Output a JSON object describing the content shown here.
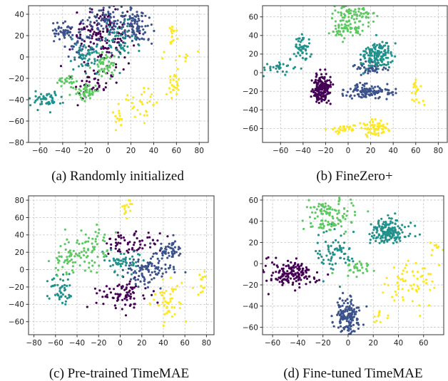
{
  "figure": {
    "palette": [
      "#440154",
      "#3b528b",
      "#21918c",
      "#5ec962",
      "#fde725"
    ]
  },
  "chart_data": [
    {
      "type": "scatter",
      "caption": "(a) Randomly initialized",
      "xlim": [
        -70,
        88
      ],
      "ylim": [
        -80,
        48
      ],
      "xticks": [
        -60,
        -40,
        -20,
        0,
        20,
        40,
        60,
        80
      ],
      "yticks": [
        -80,
        -60,
        -40,
        -20,
        0,
        20,
        40
      ],
      "grid": true,
      "clusters": [
        {
          "class": 0,
          "cx": -5,
          "cy": 20,
          "sx": 14,
          "sy": 14,
          "n": 170
        },
        {
          "class": 0,
          "cx": -15,
          "cy": -28,
          "sx": 6,
          "sy": 6,
          "n": 40
        },
        {
          "class": 1,
          "cx": -40,
          "cy": 23,
          "sx": 6,
          "sy": 4,
          "n": 45
        },
        {
          "class": 1,
          "cx": 25,
          "cy": 28,
          "sx": 7,
          "sy": 8,
          "n": 90
        },
        {
          "class": 1,
          "cx": 0,
          "cy": 35,
          "sx": 10,
          "sy": 7,
          "n": 80
        },
        {
          "class": 1,
          "cx": -25,
          "cy": 10,
          "sx": 6,
          "sy": 6,
          "n": 35
        },
        {
          "class": 2,
          "cx": -20,
          "cy": 2,
          "sx": 6,
          "sy": 8,
          "n": 50
        },
        {
          "class": 2,
          "cx": -55,
          "cy": -40,
          "sx": 8,
          "sy": 4,
          "n": 50
        },
        {
          "class": 2,
          "cx": 10,
          "cy": 15,
          "sx": 8,
          "sy": 10,
          "n": 50
        },
        {
          "class": 3,
          "cx": -3,
          "cy": -8,
          "sx": 5,
          "sy": 6,
          "n": 50
        },
        {
          "class": 3,
          "cx": -18,
          "cy": -32,
          "sx": 5,
          "sy": 4,
          "n": 45
        },
        {
          "class": 3,
          "cx": -35,
          "cy": -22,
          "sx": 5,
          "sy": 4,
          "n": 25
        },
        {
          "class": 4,
          "cx": 57,
          "cy": 22,
          "sx": 2,
          "sy": 5,
          "n": 15
        },
        {
          "class": 4,
          "cx": 58,
          "cy": -25,
          "sx": 3,
          "sy": 7,
          "n": 25
        },
        {
          "class": 4,
          "cx": 70,
          "cy": 0,
          "sx": 7,
          "sy": 3,
          "n": 10
        },
        {
          "class": 4,
          "cx": 30,
          "cy": -42,
          "sx": 6,
          "sy": 8,
          "n": 30
        },
        {
          "class": 4,
          "cx": 8,
          "cy": -60,
          "sx": 2,
          "sy": 6,
          "n": 14
        }
      ]
    },
    {
      "type": "scatter",
      "caption": "(b) FineZero+",
      "xlim": [
        -76,
        88
      ],
      "ylim": [
        -75,
        72
      ],
      "xticks": [
        -60,
        -40,
        -20,
        0,
        20,
        40,
        60,
        80
      ],
      "yticks": [
        -60,
        -40,
        -20,
        0,
        20,
        40,
        60
      ],
      "grid": true,
      "clusters": [
        {
          "class": 0,
          "cx": -23,
          "cy": -18,
          "sx": 4,
          "sy": 8,
          "n": 170
        },
        {
          "class": 1,
          "cx": 18,
          "cy": -20,
          "sx": 10,
          "sy": 4,
          "n": 120
        },
        {
          "class": 1,
          "cx": 20,
          "cy": 5,
          "sx": 7,
          "sy": 4,
          "n": 50
        },
        {
          "class": 2,
          "cx": 25,
          "cy": 18,
          "sx": 7,
          "sy": 7,
          "n": 150
        },
        {
          "class": 2,
          "cx": -40,
          "cy": 28,
          "sx": 4,
          "sy": 7,
          "n": 50
        },
        {
          "class": 2,
          "cx": -62,
          "cy": 5,
          "sx": 8,
          "sy": 3,
          "n": 30
        },
        {
          "class": 3,
          "cx": 5,
          "cy": 62,
          "sx": 9,
          "sy": 5,
          "n": 80
        },
        {
          "class": 3,
          "cx": -8,
          "cy": 45,
          "sx": 4,
          "sy": 5,
          "n": 30
        },
        {
          "class": 3,
          "cx": 5,
          "cy": 45,
          "sx": 5,
          "sy": 3,
          "n": 25
        },
        {
          "class": 4,
          "cx": 25,
          "cy": -60,
          "sx": 7,
          "sy": 4,
          "n": 60
        },
        {
          "class": 4,
          "cx": -5,
          "cy": -60,
          "sx": 8,
          "sy": 2,
          "n": 30
        },
        {
          "class": 4,
          "cx": 60,
          "cy": -20,
          "sx": 3,
          "sy": 9,
          "n": 20
        }
      ]
    },
    {
      "type": "scatter",
      "caption": "(c) Pre-trained TimeMAE",
      "xlim": [
        -85,
        87
      ],
      "ylim": [
        -75,
        85
      ],
      "xticks": [
        -80,
        -60,
        -40,
        -20,
        0,
        20,
        40,
        60,
        80
      ],
      "yticks": [
        -60,
        -40,
        -20,
        0,
        20,
        40,
        60,
        80
      ],
      "grid": true,
      "clusters": [
        {
          "class": 0,
          "cx": 0,
          "cy": -30,
          "sx": 12,
          "sy": 8,
          "n": 80
        },
        {
          "class": 0,
          "cx": 10,
          "cy": 30,
          "sx": 12,
          "sy": 7,
          "n": 60
        },
        {
          "class": 1,
          "cx": 25,
          "cy": 0,
          "sx": 12,
          "sy": 10,
          "n": 100
        },
        {
          "class": 1,
          "cx": 45,
          "cy": 20,
          "sx": 6,
          "sy": 8,
          "n": 50
        },
        {
          "class": 2,
          "cx": -55,
          "cy": -25,
          "sx": 6,
          "sy": 10,
          "n": 50
        },
        {
          "class": 2,
          "cx": 0,
          "cy": 10,
          "sx": 10,
          "sy": 8,
          "n": 50
        },
        {
          "class": 3,
          "cx": -25,
          "cy": 25,
          "sx": 8,
          "sy": 12,
          "n": 60
        },
        {
          "class": 3,
          "cx": -50,
          "cy": 15,
          "sx": 8,
          "sy": 10,
          "n": 50
        },
        {
          "class": 4,
          "cx": 45,
          "cy": -35,
          "sx": 8,
          "sy": 12,
          "n": 50
        },
        {
          "class": 4,
          "cx": 75,
          "cy": -10,
          "sx": 3,
          "sy": 8,
          "n": 15
        },
        {
          "class": 4,
          "cx": 5,
          "cy": 70,
          "sx": 3,
          "sy": 6,
          "n": 15
        }
      ]
    },
    {
      "type": "scatter",
      "caption": "(d) Fine-tuned TimeMAE",
      "xlim": [
        -68,
        76
      ],
      "ylim": [
        -67,
        64
      ],
      "xticks": [
        -60,
        -40,
        -20,
        0,
        20,
        40,
        60
      ],
      "yticks": [
        -60,
        -40,
        -20,
        0,
        20,
        40,
        60
      ],
      "grid": true,
      "clusters": [
        {
          "class": 0,
          "cx": -45,
          "cy": -10,
          "sx": 10,
          "sy": 6,
          "n": 160
        },
        {
          "class": 1,
          "cx": 0,
          "cy": -48,
          "sx": 5,
          "sy": 9,
          "n": 150
        },
        {
          "class": 2,
          "cx": 32,
          "cy": 30,
          "sx": 7,
          "sy": 6,
          "n": 170
        },
        {
          "class": 2,
          "cx": -10,
          "cy": 10,
          "sx": 8,
          "sy": 10,
          "n": 70
        },
        {
          "class": 3,
          "cx": -15,
          "cy": 45,
          "sx": 10,
          "sy": 8,
          "n": 110
        },
        {
          "class": 3,
          "cx": 10,
          "cy": -5,
          "sx": 6,
          "sy": 4,
          "n": 30
        },
        {
          "class": 4,
          "cx": 50,
          "cy": -20,
          "sx": 10,
          "sy": 12,
          "n": 60
        },
        {
          "class": 4,
          "cx": 70,
          "cy": 15,
          "sx": 3,
          "sy": 4,
          "n": 10
        },
        {
          "class": 4,
          "cx": 25,
          "cy": -50,
          "sx": 3,
          "sy": 6,
          "n": 10
        }
      ]
    }
  ]
}
